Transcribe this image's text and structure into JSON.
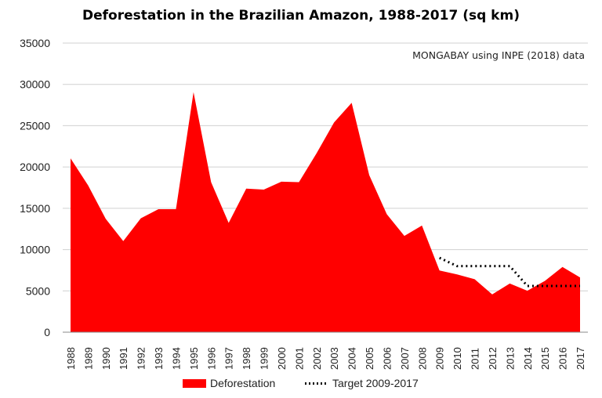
{
  "chart_data": {
    "type": "area",
    "title": "Deforestation in the Brazilian Amazon, 1988-2017 (sq km)",
    "annotation": "MONGABAY using INPE (2018) data",
    "xlabel": "",
    "ylabel": "",
    "ylim": [
      0,
      35000
    ],
    "yticks": [
      "0",
      "5000",
      "10000",
      "15000",
      "20000",
      "25000",
      "30000",
      "35000"
    ],
    "grid": true,
    "legend_position": "bottom",
    "categories": [
      "1988",
      "1989",
      "1990",
      "1991",
      "1992",
      "1993",
      "1994",
      "1995",
      "1996",
      "1997",
      "1998",
      "1999",
      "2000",
      "2001",
      "2002",
      "2003",
      "2004",
      "2005",
      "2006",
      "2007",
      "2008",
      "2009",
      "2010",
      "2011",
      "2012",
      "2013",
      "2014",
      "2015",
      "2016",
      "2017"
    ],
    "series": [
      {
        "name": "Deforestation",
        "kind": "area",
        "color": "#ff0000",
        "values": [
          21050,
          17770,
          13730,
          11030,
          13786,
          14896,
          14896,
          29059,
          18161,
          13227,
          17383,
          17259,
          18226,
          18165,
          21651,
          25396,
          27772,
          19014,
          14286,
          11651,
          12911,
          7464,
          7000,
          6418,
          4571,
          5891,
          5012,
          6207,
          7893,
          6624
        ]
      },
      {
        "name": "Target 2009-2017",
        "kind": "dotted-line",
        "color": "#000000",
        "values": [
          null,
          null,
          null,
          null,
          null,
          null,
          null,
          null,
          null,
          null,
          null,
          null,
          null,
          null,
          null,
          null,
          null,
          null,
          null,
          null,
          null,
          9000,
          8000,
          8000,
          8000,
          8000,
          5600,
          5600,
          5600,
          5600
        ]
      }
    ]
  }
}
